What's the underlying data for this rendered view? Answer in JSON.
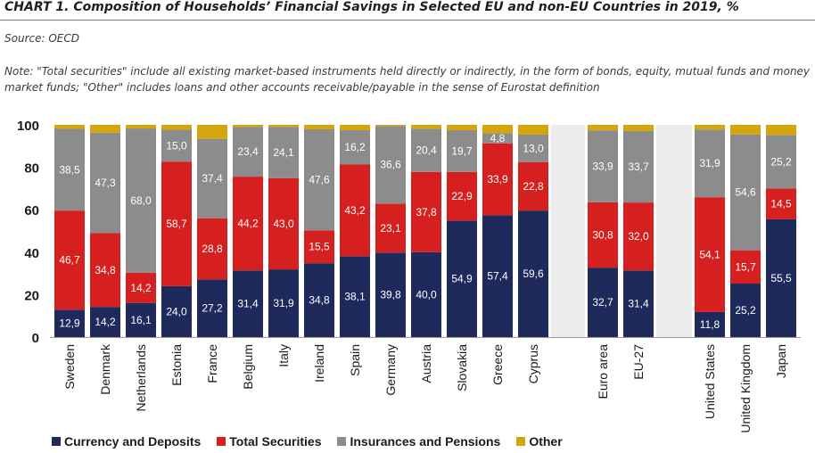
{
  "header": {
    "title": "CHART 1. Composition of Households’ Financial Savings in Selected EU and non-EU Countries in 2019, %",
    "source": "Source: OECD",
    "note": "Note: \"Total securities\" include all existing market-based instruments held directly or indirectly, in the form of bonds, equity, mutual funds and money market funds; \"Other\" includes loans and other accounts receivable/payable in the sense of Eurostat definition"
  },
  "colors": {
    "currency": "#1e2a5c",
    "securities": "#d62020",
    "insurance": "#8c8c8c",
    "other": "#d4a50c",
    "gap": "#ececec"
  },
  "chart_data": {
    "type": "bar",
    "stacked": true,
    "ylim": [
      0,
      100
    ],
    "yticks": [
      0,
      20,
      40,
      60,
      80,
      100
    ],
    "categories": [
      "Sweden",
      "Denmark",
      "Netherlands",
      "Estonia",
      "France",
      "Belgium",
      "Italy",
      "Ireland",
      "Spain",
      "Germany",
      "Austria",
      "Slovakia",
      "Greece",
      "Cyprus",
      "Euro area",
      "EU-27",
      "United States",
      "United Kingdom",
      "Japan"
    ],
    "series": [
      {
        "name": "Currency and Deposits",
        "color_key": "currency",
        "values": [
          12.9,
          14.2,
          16.1,
          24.0,
          27.2,
          31.4,
          31.9,
          34.8,
          38.1,
          39.8,
          40.0,
          54.9,
          57.4,
          59.6,
          32.7,
          31.4,
          11.8,
          25.2,
          55.5
        ],
        "labels": [
          "12,9",
          "14,2",
          "16,1",
          "24,0",
          "27,2",
          "31,4",
          "31,9",
          "34,8",
          "38,1",
          "39,8",
          "40,0",
          "54,9",
          "57,4",
          "59,6",
          "32,7",
          "31,4",
          "11,8",
          "25,2",
          "55,5"
        ]
      },
      {
        "name": "Total Securities",
        "color_key": "securities",
        "values": [
          46.7,
          34.8,
          14.2,
          58.7,
          28.8,
          44.2,
          43.0,
          15.5,
          43.2,
          23.1,
          37.8,
          22.9,
          33.9,
          22.8,
          30.8,
          32.0,
          54.1,
          15.7,
          14.5
        ],
        "labels": [
          "46,7",
          "34,8",
          "14,2",
          "58,7",
          "28,8",
          "44,2",
          "43,0",
          "15,5",
          "43,2",
          "23,1",
          "37,8",
          "22,9",
          "33,9",
          "22,8",
          "30,8",
          "32,0",
          "54,1",
          "15,7",
          "14,5"
        ]
      },
      {
        "name": "Insurances and Pensions",
        "color_key": "insurance",
        "values": [
          38.5,
          47.3,
          68.0,
          15.0,
          37.4,
          23.4,
          24.1,
          47.6,
          16.2,
          36.6,
          20.4,
          19.7,
          4.8,
          13.0,
          33.9,
          33.7,
          31.9,
          54.6,
          25.2
        ],
        "labels": [
          "38,5",
          "47,3",
          "68,0",
          "15,0",
          "37,4",
          "23,4",
          "24,1",
          "47,6",
          "16,2",
          "36,6",
          "20,4",
          "19,7",
          "4,8",
          "13,0",
          "33,9",
          "33,7",
          "31,9",
          "54,6",
          "25,2"
        ]
      },
      {
        "name": "Other",
        "color_key": "other",
        "values": [
          1.9,
          3.7,
          1.7,
          2.3,
          6.6,
          1.0,
          1.0,
          2.1,
          2.5,
          0.5,
          1.8,
          2.5,
          3.9,
          4.6,
          2.6,
          2.9,
          2.2,
          4.5,
          4.8
        ],
        "labels": []
      }
    ],
    "legend": [
      "Currency and Deposits",
      "Total Securities",
      "Insurances and Pensions",
      "Other"
    ],
    "legend_position": "bottom"
  }
}
